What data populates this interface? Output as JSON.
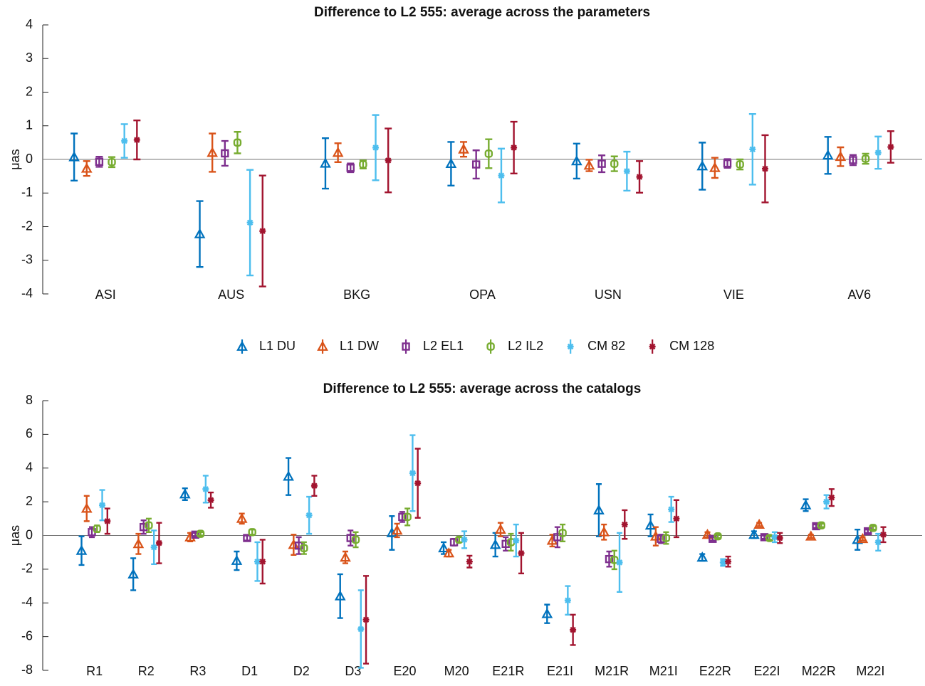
{
  "chart_data": [
    {
      "type": "errorbar",
      "title": "Difference to L2 555: average across the parameters",
      "ylabel": "μas",
      "categories": [
        "ASI",
        "AUS",
        "BKG",
        "OPA",
        "USN",
        "VIE",
        "AV6"
      ],
      "ylim": [
        -4,
        4
      ],
      "yticks": [
        -4,
        -3,
        -2,
        -1,
        0,
        1,
        2,
        3,
        4
      ],
      "series": [
        {
          "name": "L1 DU",
          "color": "#0072bd",
          "marker": "triangle",
          "values": [
            0.07,
            -2.22,
            -0.12,
            -0.13,
            -0.05,
            -0.2,
            0.12
          ],
          "errors": [
            0.7,
            0.98,
            0.75,
            0.65,
            0.52,
            0.7,
            0.55
          ]
        },
        {
          "name": "L1 DW",
          "color": "#d95319",
          "marker": "triangle",
          "values": [
            -0.27,
            0.2,
            0.2,
            0.3,
            -0.18,
            -0.25,
            0.08
          ],
          "errors": [
            0.22,
            0.57,
            0.28,
            0.22,
            0.17,
            0.3,
            0.28
          ]
        },
        {
          "name": "L2 EL1",
          "color": "#7e2f8e",
          "marker": "square",
          "values": [
            -0.07,
            0.18,
            -0.25,
            -0.15,
            -0.13,
            -0.12,
            -0.02
          ],
          "errors": [
            0.15,
            0.37,
            0.13,
            0.42,
            0.25,
            0.13,
            0.15
          ]
        },
        {
          "name": "L2 IL2",
          "color": "#77ac30",
          "marker": "circle",
          "values": [
            -0.08,
            0.5,
            -0.15,
            0.17,
            -0.13,
            -0.15,
            0.02
          ],
          "errors": [
            0.15,
            0.32,
            0.12,
            0.43,
            0.22,
            0.15,
            0.15
          ]
        },
        {
          "name": "CM 82",
          "color": "#4dbeee",
          "marker": "star",
          "values": [
            0.55,
            -1.88,
            0.35,
            -0.48,
            -0.35,
            0.3,
            0.2
          ],
          "errors": [
            0.5,
            1.57,
            0.97,
            0.8,
            0.58,
            1.05,
            0.48
          ]
        },
        {
          "name": "CM 128",
          "color": "#a2142f",
          "marker": "star",
          "values": [
            0.58,
            -2.13,
            -0.03,
            0.35,
            -0.52,
            -0.28,
            0.37
          ],
          "errors": [
            0.58,
            1.65,
            0.95,
            0.77,
            0.47,
            1.0,
            0.47
          ]
        }
      ]
    },
    {
      "type": "errorbar",
      "title": "Difference to L2 555: average across the catalogs",
      "ylabel": "μas",
      "categories": [
        "R1",
        "R2",
        "R3",
        "D1",
        "D2",
        "D3",
        "E20",
        "M20",
        "E21R",
        "E21I",
        "M21R",
        "M21I",
        "E22R",
        "E22I",
        "M22R",
        "M22I"
      ],
      "ylim": [
        -8,
        8
      ],
      "yticks": [
        -8,
        -6,
        -4,
        -2,
        0,
        2,
        4,
        6,
        8
      ],
      "series": [
        {
          "color": "#0072bd",
          "marker": "triangle",
          "values": [
            -0.9,
            -2.3,
            2.45,
            -1.5,
            3.5,
            -3.6,
            0.15,
            -0.75,
            -0.55,
            -4.65,
            1.5,
            0.6,
            -1.3,
            0.05,
            1.8,
            -0.25
          ],
          "errors": [
            0.85,
            0.95,
            0.35,
            0.55,
            1.1,
            1.3,
            1.0,
            0.35,
            0.7,
            0.55,
            1.55,
            0.65,
            0.2,
            0.2,
            0.35,
            0.6
          ]
        },
        {
          "color": "#d95319",
          "marker": "triangle",
          "values": [
            1.6,
            -0.5,
            -0.1,
            1.0,
            -0.55,
            -1.3,
            0.3,
            -1.05,
            0.35,
            -0.3,
            0.2,
            -0.05,
            0.05,
            0.65,
            -0.05,
            -0.2
          ],
          "errors": [
            0.75,
            0.6,
            0.25,
            0.3,
            0.6,
            0.35,
            0.4,
            0.2,
            0.4,
            0.35,
            0.45,
            0.55,
            0.15,
            0.1,
            0.1,
            0.1
          ]
        },
        {
          "color": "#7e2f8e",
          "marker": "square",
          "values": [
            0.2,
            0.5,
            0.05,
            -0.15,
            -0.6,
            -0.15,
            1.1,
            -0.4,
            -0.5,
            -0.1,
            -1.4,
            -0.2,
            -0.2,
            -0.1,
            0.55,
            0.25
          ],
          "errors": [
            0.3,
            0.4,
            0.1,
            0.15,
            0.5,
            0.45,
            0.3,
            0.2,
            0.4,
            0.6,
            0.45,
            0.25,
            0.1,
            0.1,
            0.1,
            0.1
          ]
        },
        {
          "color": "#77ac30",
          "marker": "circle",
          "values": [
            0.4,
            0.6,
            0.1,
            0.2,
            -0.75,
            -0.25,
            1.1,
            -0.25,
            -0.4,
            0.15,
            -1.45,
            -0.15,
            -0.05,
            -0.15,
            0.6,
            0.45
          ],
          "errors": [
            0.2,
            0.4,
            0.1,
            0.15,
            0.35,
            0.45,
            0.5,
            0.15,
            0.5,
            0.5,
            0.55,
            0.35,
            0.1,
            0.1,
            0.1,
            0.1
          ]
        },
        {
          "color": "#4dbeee",
          "marker": "star",
          "values": [
            1.8,
            -0.7,
            2.75,
            -1.55,
            1.2,
            -5.55,
            3.7,
            -0.25,
            -0.3,
            -3.85,
            -1.6,
            1.55,
            -1.6,
            -0.1,
            2.0,
            -0.4
          ],
          "errors": [
            0.9,
            1.0,
            0.8,
            1.15,
            1.1,
            2.3,
            2.25,
            0.5,
            0.95,
            0.85,
            1.75,
            0.75,
            0.2,
            0.3,
            0.4,
            0.5
          ]
        },
        {
          "color": "#a2142f",
          "marker": "star",
          "values": [
            0.85,
            -0.45,
            2.1,
            -1.55,
            2.95,
            -5.0,
            3.1,
            -1.55,
            -1.05,
            -5.6,
            0.65,
            1.0,
            -1.55,
            -0.15,
            2.25,
            0.05
          ],
          "errors": [
            0.75,
            1.2,
            0.45,
            1.3,
            0.6,
            2.6,
            2.05,
            0.35,
            1.2,
            0.9,
            0.85,
            1.1,
            0.3,
            0.3,
            0.5,
            0.45
          ]
        }
      ]
    }
  ]
}
